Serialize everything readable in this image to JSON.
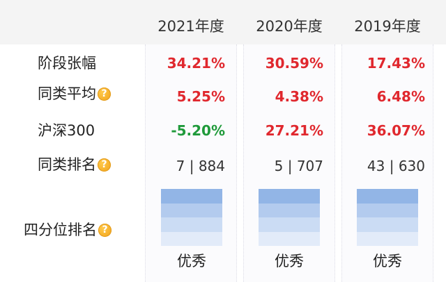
{
  "columns": [
    "2021年度",
    "2020年度",
    "2019年度"
  ],
  "rows": [
    {
      "label": "阶段张幅",
      "help": false,
      "values": [
        "34.21%",
        "30.59%",
        "17.43%"
      ],
      "tones": [
        "pos",
        "pos",
        "pos"
      ]
    },
    {
      "label": "同类平均",
      "help": true,
      "values": [
        "5.25%",
        "4.38%",
        "6.48%"
      ],
      "tones": [
        "pos",
        "pos",
        "pos"
      ]
    },
    {
      "label": "沪深300",
      "help": false,
      "values": [
        "-5.20%",
        "27.21%",
        "36.07%"
      ],
      "tones": [
        "neg",
        "pos",
        "pos"
      ]
    },
    {
      "label": "同类排名",
      "help": true,
      "values": [
        "7 | 884",
        "5 | 707",
        "43 | 630"
      ],
      "tones": [
        "plain",
        "plain",
        "plain"
      ]
    }
  ],
  "quartile": {
    "label": "四分位排名",
    "help": true,
    "grades": [
      "优秀",
      "优秀",
      "优秀"
    ]
  },
  "help_glyph": "?",
  "colors": {
    "positive": "#e0282e",
    "negative": "#1f9a3a",
    "quartile_top": "#92b5e6"
  }
}
